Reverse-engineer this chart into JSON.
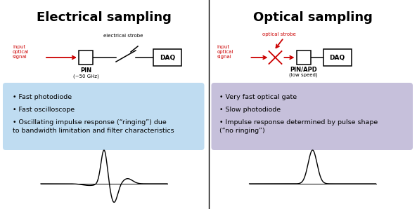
{
  "title_left": "Electrical sampling",
  "title_right": "Optical sampling",
  "title_fontsize": 13,
  "bg_color": "#ffffff",
  "left_box_color": "#b8d9f0",
  "right_box_color": "#c0bad8",
  "left_bullets": [
    "Fast photodiode",
    "Fast oscilloscope",
    "Oscillating impulse response (“ringing”) due\nto bandwidth limitation and filter characteristics"
  ],
  "right_bullets": [
    "Very fast optical gate",
    "Slow photodiode",
    "Impulse response determined by pulse shape\n(“no ringing”)"
  ],
  "bullet_fontsize": 6.8,
  "red_color": "#cc0000",
  "black_color": "#000000"
}
